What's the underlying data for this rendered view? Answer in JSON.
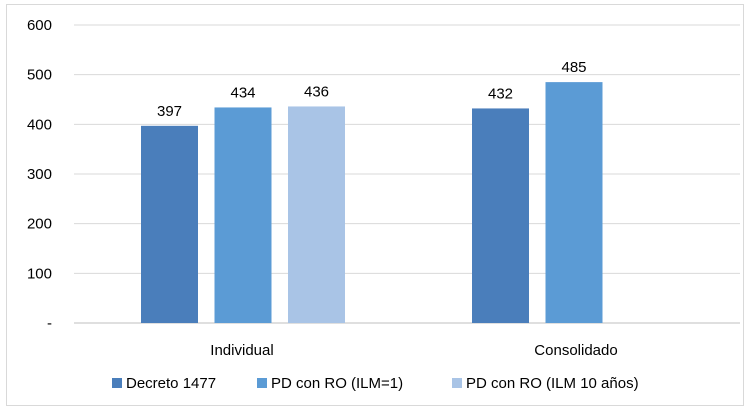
{
  "chart_data": {
    "type": "bar",
    "categories": [
      "Individual",
      "Consolidado"
    ],
    "series": [
      {
        "name": "Decreto 1477",
        "color": "#4a7ebb",
        "values": [
          397,
          432
        ]
      },
      {
        "name": "PD con RO (ILM=1)",
        "color": "#5b9bd5",
        "values": [
          434,
          485
        ]
      },
      {
        "name": "PD con RO (ILM 10 años)",
        "color": "#a9c4e6",
        "values": [
          436,
          null
        ]
      }
    ],
    "yticks": [
      "-",
      "100",
      "200",
      "300",
      "400",
      "500",
      "600"
    ],
    "ylim": [
      0,
      600
    ],
    "grid": true,
    "legend_position": "bottom"
  }
}
